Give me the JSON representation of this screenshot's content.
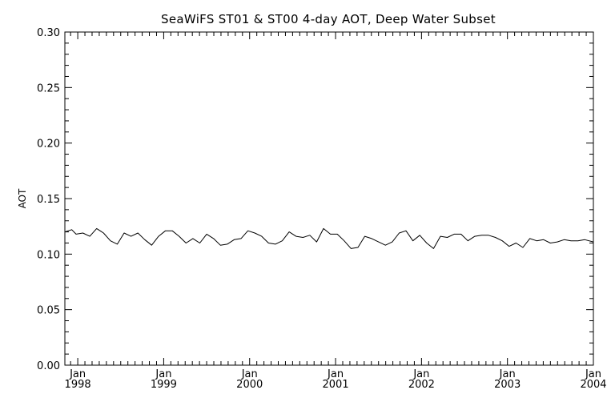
{
  "chart_data": {
    "type": "line",
    "title": "SeaWiFS ST01 & ST00 4-day AOT, Deep Water Subset",
    "ylabel": "AOT",
    "xlabel": "",
    "ylim": [
      0.0,
      0.3
    ],
    "yticks": [
      "0.00",
      "0.05",
      "0.10",
      "0.15",
      "0.20",
      "0.25",
      "0.30"
    ],
    "xlim": [
      1997.85,
      2004.0
    ],
    "xticks": [
      {
        "value": 1998.0,
        "month": "Jan",
        "year": "1998"
      },
      {
        "value": 1999.0,
        "month": "Jan",
        "year": "1999"
      },
      {
        "value": 2000.0,
        "month": "Jan",
        "year": "2000"
      },
      {
        "value": 2001.0,
        "month": "Jan",
        "year": "2001"
      },
      {
        "value": 2002.0,
        "month": "Jan",
        "year": "2002"
      },
      {
        "value": 2003.0,
        "month": "Jan",
        "year": "2003"
      },
      {
        "value": 2004.0,
        "month": "Jan",
        "year": "2004"
      }
    ],
    "grid": false,
    "series": [
      {
        "name": "",
        "color": "#000000",
        "x": [
          1997.85,
          1997.93,
          1997.98,
          1998.06,
          1998.14,
          1998.22,
          1998.3,
          1998.38,
          1998.46,
          1998.54,
          1998.62,
          1998.7,
          1998.78,
          1998.86,
          1998.94,
          1999.02,
          1999.1,
          1999.18,
          1999.26,
          1999.34,
          1999.42,
          1999.5,
          1999.58,
          1999.66,
          1999.74,
          1999.82,
          1999.9,
          1999.98,
          2000.06,
          2000.14,
          2000.22,
          2000.3,
          2000.38,
          2000.46,
          2000.54,
          2000.62,
          2000.7,
          2000.78,
          2000.86,
          2000.94,
          2001.02,
          2001.1,
          2001.18,
          2001.26,
          2001.34,
          2001.42,
          2001.5,
          2001.58,
          2001.66,
          2001.74,
          2001.82,
          2001.9,
          2001.98,
          2002.06,
          2002.14,
          2002.22,
          2002.3,
          2002.38,
          2002.46,
          2002.54,
          2002.62,
          2002.7,
          2002.78,
          2002.86,
          2002.94,
          2003.02,
          2003.1,
          2003.18,
          2003.26,
          2003.34,
          2003.42,
          2003.5,
          2003.58,
          2003.66,
          2003.74,
          2003.82,
          2003.9,
          2004.0
        ],
        "y": [
          0.12,
          0.122,
          0.118,
          0.119,
          0.116,
          0.123,
          0.119,
          0.112,
          0.109,
          0.119,
          0.116,
          0.119,
          0.113,
          0.108,
          0.116,
          0.121,
          0.121,
          0.116,
          0.11,
          0.114,
          0.11,
          0.118,
          0.114,
          0.108,
          0.109,
          0.113,
          0.114,
          0.121,
          0.119,
          0.116,
          0.11,
          0.109,
          0.112,
          0.12,
          0.116,
          0.115,
          0.117,
          0.111,
          0.123,
          0.118,
          0.118,
          0.112,
          0.105,
          0.106,
          0.116,
          0.114,
          0.111,
          0.108,
          0.111,
          0.119,
          0.121,
          0.112,
          0.117,
          0.11,
          0.105,
          0.116,
          0.115,
          0.118,
          0.118,
          0.112,
          0.116,
          0.117,
          0.117,
          0.115,
          0.112,
          0.107,
          0.11,
          0.106,
          0.114,
          0.112,
          0.113,
          0.11,
          0.111,
          0.113,
          0.112,
          0.112,
          0.113,
          0.111
        ]
      }
    ]
  }
}
